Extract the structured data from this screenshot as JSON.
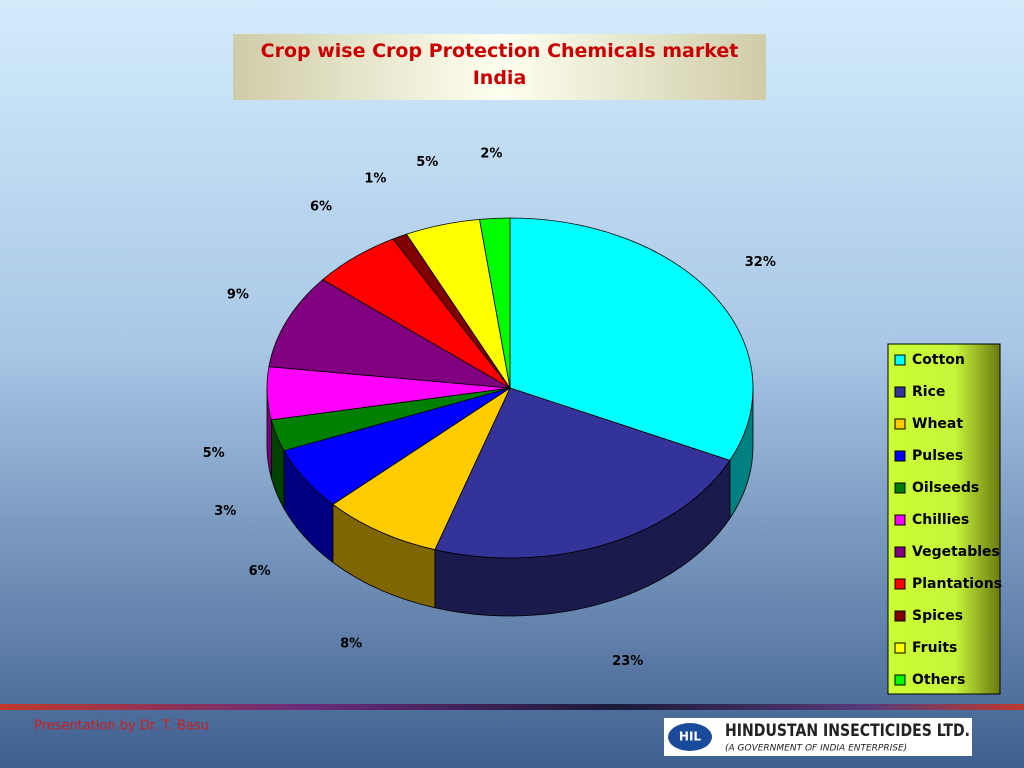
{
  "chart_data": {
    "type": "pie",
    "title": "Crop wise Crop Protection Chemicals market India",
    "categories": [
      "Cotton",
      "Rice",
      "Wheat",
      "Pulses",
      "Oilseeds",
      "Chillies",
      "Vegetables",
      "Plantations",
      "Spices",
      "Fruits",
      "Others"
    ],
    "values": [
      32,
      23,
      8,
      6,
      3,
      5,
      9,
      6,
      1,
      5,
      2
    ],
    "value_labels": [
      "32%",
      "23%",
      "8%",
      "6%",
      "3%",
      "5%",
      "9%",
      "6%",
      "1%",
      "5%",
      "2%"
    ],
    "colors": [
      "#00ffff",
      "#333399",
      "#ffcc00",
      "#0000ff",
      "#008000",
      "#ff00ff",
      "#800080",
      "#ff0000",
      "#800000",
      "#ffff00",
      "#00ff00"
    ],
    "legend": "right"
  },
  "footer": {
    "credit": "Presentation by Dr. T. Basu",
    "logo_mark": "HIL",
    "company": "HINDUSTAN INSECTICIDES LTD.",
    "company_note": "(A GOVERNMENT OF INDIA ENTERPRISE)"
  }
}
